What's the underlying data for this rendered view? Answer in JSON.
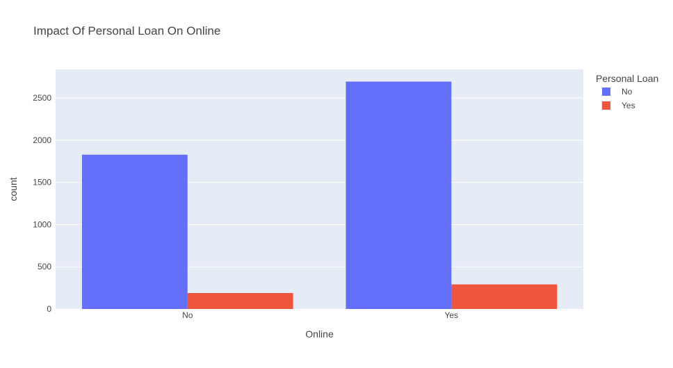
{
  "chart_data": {
    "type": "bar",
    "barmode": "group",
    "title": "Impact Of Personal Loan On Online",
    "xlabel": "Online",
    "ylabel": "count",
    "categories": [
      "No",
      "Yes"
    ],
    "series": [
      {
        "name": "No",
        "color": "#636efa",
        "values": [
          1827,
          2693
        ]
      },
      {
        "name": "Yes",
        "color": "#ef553b",
        "values": [
          189,
          291
        ]
      }
    ],
    "ylim": [
      0,
      2837
    ],
    "yticks": [
      0,
      500,
      1000,
      1500,
      2000,
      2500
    ],
    "grid": true,
    "legend": {
      "title": "Personal Loan",
      "position": "top-right"
    },
    "colors": {
      "plot_background": "#e5ecf6",
      "grid": "#ffffff",
      "text": "#444444"
    }
  }
}
